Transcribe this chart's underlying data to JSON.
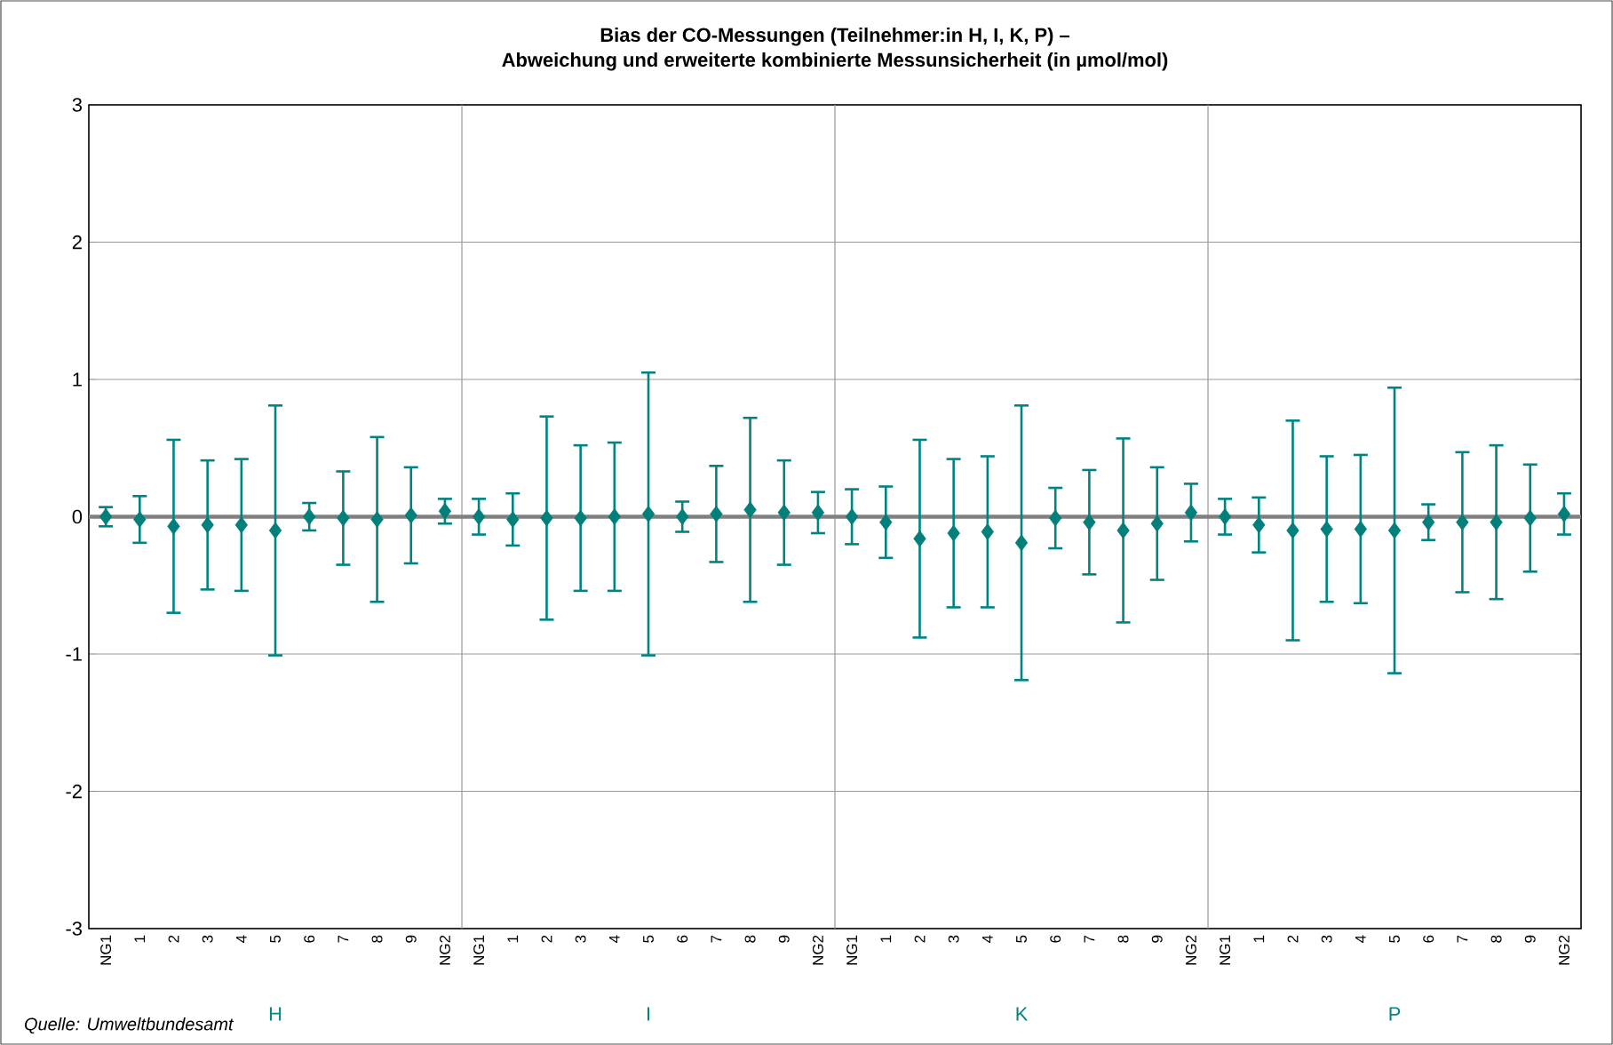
{
  "chart_data": {
    "type": "scatter",
    "title": "Bias der CO-Messungen (Teilnehmer:in H, I, K, P) –",
    "subtitle": "Abweichung und erweiterte kombinierte Messunsicherheit (in µmol/mol)",
    "categories": [
      "NG1",
      "1",
      "2",
      "3",
      "4",
      "5",
      "6",
      "7",
      "8",
      "9",
      "NG2",
      "NG1",
      "1",
      "2",
      "3",
      "4",
      "5",
      "6",
      "7",
      "8",
      "9",
      "NG2",
      "NG1",
      "1",
      "2",
      "3",
      "4",
      "5",
      "6",
      "7",
      "8",
      "9",
      "NG2",
      "NG1",
      "1",
      "2",
      "3",
      "4",
      "5",
      "6",
      "7",
      "8",
      "9",
      "NG2"
    ],
    "series": [
      {
        "color": "#007f7b",
        "values": [
          0,
          -0.02,
          -0.07,
          -0.06,
          -0.06,
          -0.1,
          0,
          -0.01,
          -0.02,
          0.01,
          0.04,
          0,
          -0.02,
          -0.01,
          -0.01,
          0,
          0.02,
          0,
          0.02,
          0.05,
          0.03,
          0.03,
          0,
          -0.04,
          -0.16,
          -0.12,
          -0.11,
          -0.19,
          -0.01,
          -0.04,
          -0.1,
          -0.05,
          0.03,
          0,
          -0.06,
          -0.1,
          -0.09,
          -0.09,
          -0.1,
          -0.04,
          -0.04,
          -0.04,
          -0.01,
          0.02
        ],
        "errors": [
          0.07,
          0.17,
          0.63,
          0.47,
          0.48,
          0.91,
          0.1,
          0.34,
          0.6,
          0.35,
          0.09,
          0.13,
          0.19,
          0.74,
          0.53,
          0.54,
          1.03,
          0.11,
          0.35,
          0.67,
          0.38,
          0.15,
          0.2,
          0.26,
          0.72,
          0.54,
          0.55,
          1.0,
          0.22,
          0.38,
          0.67,
          0.41,
          0.21,
          0.13,
          0.2,
          0.8,
          0.53,
          0.54,
          1.04,
          0.13,
          0.51,
          0.56,
          0.39,
          0.15
        ]
      }
    ],
    "ylim": [
      -3,
      3
    ],
    "yticks": [
      -3,
      -2,
      -1,
      0,
      1,
      2,
      3
    ],
    "grid": true,
    "marker": "diamond",
    "ref_lines": [
      {
        "axis": "y",
        "value": 0,
        "color": "#808080"
      }
    ],
    "annotations": [
      "H",
      "I",
      "K",
      "P",
      "*Quelle: Umweltbundesamt*"
    ]
  }
}
